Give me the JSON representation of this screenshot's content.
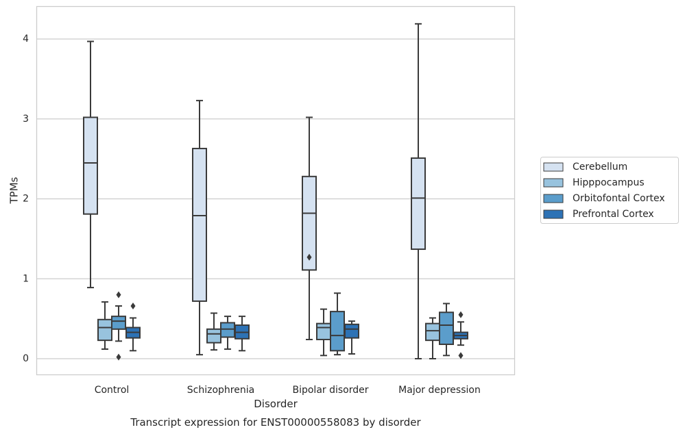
{
  "chart_data": {
    "type": "box",
    "title": "",
    "caption": "Transcript expression for ENST00000558083 by disorder",
    "xlabel": "Disorder",
    "ylabel": "TPMs",
    "ylim": [
      -0.2,
      4.4
    ],
    "yticks": [
      0,
      1,
      2,
      3,
      4
    ],
    "grid": "horizontal",
    "legend_position": "right",
    "categories": [
      "Control",
      "Schizophrenia",
      "Bipolar disorder",
      "Major depression"
    ],
    "series": [
      {
        "name": "Cerebellum",
        "color": "#d5e2f1",
        "boxes": [
          {
            "whisker_low": 0.89,
            "q1": 1.81,
            "median": 2.45,
            "q3": 3.02,
            "whisker_high": 3.97,
            "outliers": []
          },
          {
            "whisker_low": 0.05,
            "q1": 0.72,
            "median": 1.79,
            "q3": 2.63,
            "whisker_high": 3.23,
            "outliers": []
          },
          {
            "whisker_low": 0.24,
            "q1": 1.11,
            "median": 1.82,
            "q3": 2.28,
            "whisker_high": 3.02,
            "outliers": [
              1.27
            ]
          },
          {
            "whisker_low": 0.0,
            "q1": 1.37,
            "median": 2.01,
            "q3": 2.51,
            "whisker_high": 4.19,
            "outliers": []
          }
        ]
      },
      {
        "name": "Hipppocampus",
        "color": "#98c3de",
        "boxes": [
          {
            "whisker_low": 0.12,
            "q1": 0.23,
            "median": 0.39,
            "q3": 0.49,
            "whisker_high": 0.71,
            "outliers": []
          },
          {
            "whisker_low": 0.11,
            "q1": 0.2,
            "median": 0.31,
            "q3": 0.37,
            "whisker_high": 0.57,
            "outliers": []
          },
          {
            "whisker_low": 0.04,
            "q1": 0.24,
            "median": 0.39,
            "q3": 0.44,
            "whisker_high": 0.62,
            "outliers": []
          },
          {
            "whisker_low": 0.0,
            "q1": 0.23,
            "median": 0.35,
            "q3": 0.44,
            "whisker_high": 0.51,
            "outliers": []
          }
        ]
      },
      {
        "name": "Orbitofontal Cortex",
        "color": "#5b9dcb",
        "boxes": [
          {
            "whisker_low": 0.22,
            "q1": 0.37,
            "median": 0.47,
            "q3": 0.53,
            "whisker_high": 0.66,
            "outliers": [
              0.8,
              0.02
            ]
          },
          {
            "whisker_low": 0.12,
            "q1": 0.27,
            "median": 0.37,
            "q3": 0.45,
            "whisker_high": 0.53,
            "outliers": []
          },
          {
            "whisker_low": 0.05,
            "q1": 0.1,
            "median": 0.29,
            "q3": 0.59,
            "whisker_high": 0.82,
            "outliers": []
          },
          {
            "whisker_low": 0.04,
            "q1": 0.18,
            "median": 0.42,
            "q3": 0.58,
            "whisker_high": 0.69,
            "outliers": []
          }
        ]
      },
      {
        "name": "Prefrontal Cortex",
        "color": "#2d72b5",
        "boxes": [
          {
            "whisker_low": 0.1,
            "q1": 0.26,
            "median": 0.33,
            "q3": 0.39,
            "whisker_high": 0.51,
            "outliers": [
              0.66
            ]
          },
          {
            "whisker_low": 0.1,
            "q1": 0.25,
            "median": 0.33,
            "q3": 0.42,
            "whisker_high": 0.53,
            "outliers": []
          },
          {
            "whisker_low": 0.06,
            "q1": 0.26,
            "median": 0.37,
            "q3": 0.43,
            "whisker_high": 0.47,
            "outliers": []
          },
          {
            "whisker_low": 0.17,
            "q1": 0.25,
            "median": 0.29,
            "q3": 0.33,
            "whisker_high": 0.46,
            "outliers": [
              0.55,
              0.04
            ]
          }
        ]
      }
    ]
  }
}
